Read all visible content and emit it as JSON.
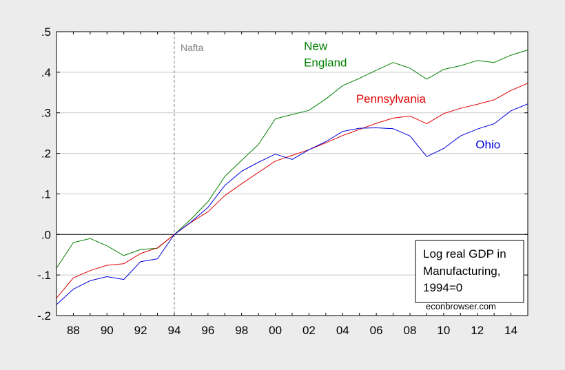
{
  "chart_data": {
    "type": "line",
    "title": "",
    "xlabel": "",
    "ylabel": "",
    "x": [
      1987,
      1988,
      1989,
      1990,
      1991,
      1992,
      1993,
      1994,
      1995,
      1996,
      1997,
      1998,
      1999,
      2000,
      2001,
      2002,
      2003,
      2004,
      2005,
      2006,
      2007,
      2008,
      2009,
      2010,
      2011,
      2012,
      2013,
      2014,
      2015
    ],
    "xlim": [
      1987,
      2015
    ],
    "ylim": [
      -0.2,
      0.5
    ],
    "grid": true,
    "x_ticks": [
      {
        "value": 1988,
        "label": "88"
      },
      {
        "value": 1990,
        "label": "90"
      },
      {
        "value": 1992,
        "label": "92"
      },
      {
        "value": 1994,
        "label": "94"
      },
      {
        "value": 1996,
        "label": "96"
      },
      {
        "value": 1998,
        "label": "98"
      },
      {
        "value": 2000,
        "label": "00"
      },
      {
        "value": 2002,
        "label": "02"
      },
      {
        "value": 2004,
        "label": "04"
      },
      {
        "value": 2006,
        "label": "06"
      },
      {
        "value": 2008,
        "label": "08"
      },
      {
        "value": 2010,
        "label": "10"
      },
      {
        "value": 2012,
        "label": "12"
      },
      {
        "value": 2014,
        "label": "14"
      }
    ],
    "y_ticks": [
      {
        "value": -0.2,
        "label": "-.2"
      },
      {
        "value": -0.1,
        "label": "-.1"
      },
      {
        "value": 0.0,
        "label": ".0"
      },
      {
        "value": 0.1,
        "label": ".1"
      },
      {
        "value": 0.2,
        "label": ".2"
      },
      {
        "value": 0.3,
        "label": ".3"
      },
      {
        "value": 0.4,
        "label": ".4"
      },
      {
        "value": 0.5,
        "label": ".5"
      }
    ],
    "series": [
      {
        "id": "new-england",
        "name": "New England",
        "label_lines": [
          "New",
          "England"
        ],
        "color": "#008000",
        "values": [
          -0.083,
          -0.02,
          -0.01,
          -0.028,
          -0.052,
          -0.037,
          -0.034,
          0.0,
          0.038,
          0.081,
          0.143,
          0.183,
          0.222,
          0.285,
          0.296,
          0.306,
          0.334,
          0.367,
          0.385,
          0.405,
          0.424,
          0.41,
          0.383,
          0.407,
          0.416,
          0.429,
          0.424,
          0.442,
          0.455
        ]
      },
      {
        "id": "pennsylvania",
        "name": "Pennsylvania",
        "label_lines": [
          "Pennsylvania"
        ],
        "color": "#e00000",
        "values": [
          -0.157,
          -0.107,
          -0.089,
          -0.076,
          -0.072,
          -0.047,
          -0.033,
          0.0,
          0.03,
          0.056,
          0.096,
          0.125,
          0.153,
          0.181,
          0.195,
          0.209,
          0.226,
          0.244,
          0.259,
          0.274,
          0.287,
          0.292,
          0.273,
          0.298,
          0.311,
          0.321,
          0.332,
          0.355,
          0.373
        ]
      },
      {
        "id": "ohio",
        "name": "Ohio",
        "label_lines": [
          "Ohio"
        ],
        "color": "#0000e0",
        "values": [
          -0.173,
          -0.135,
          -0.114,
          -0.104,
          -0.111,
          -0.067,
          -0.06,
          0.0,
          0.031,
          0.067,
          0.121,
          0.156,
          0.178,
          0.198,
          0.185,
          0.209,
          0.229,
          0.254,
          0.262,
          0.263,
          0.261,
          0.243,
          0.192,
          0.212,
          0.243,
          0.26,
          0.273,
          0.305,
          0.322
        ]
      }
    ],
    "annotations": {
      "nafta": {
        "x": 1994,
        "label": "Nafta"
      },
      "note_lines": [
        "Log real GDP in",
        "Manufacturing,",
        "1994=0"
      ],
      "source": "econbrowser.com"
    }
  }
}
